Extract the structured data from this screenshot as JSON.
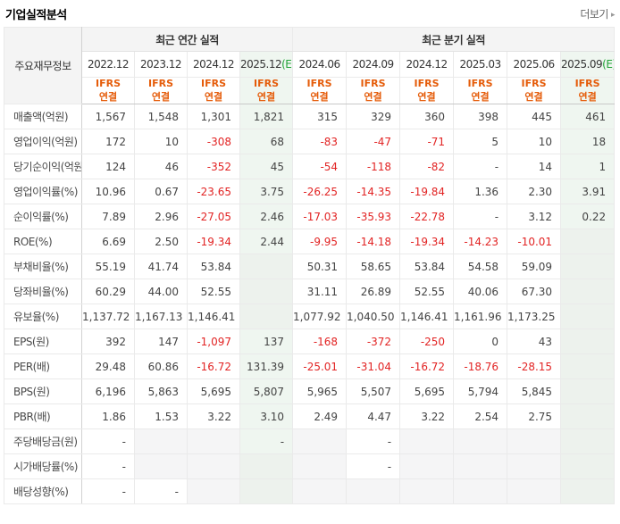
{
  "page": {
    "title": "기업실적분석",
    "more_label": "더보기",
    "more_arrow": "▸"
  },
  "colors": {
    "negative_red": "#e22424",
    "ifrs_orange": "#e55c0a",
    "estimate_green": "#23a338",
    "estimate_bg": "#eff6f0",
    "header_bg": "#f4f4f4",
    "empty_cell_bg": "#f5f5f6"
  },
  "table": {
    "corner_label": "주요재무정보",
    "groups": [
      {
        "label": "최근 연간 실적",
        "span": 4
      },
      {
        "label": "최근 분기 실적",
        "span": 6
      }
    ],
    "columns": [
      {
        "period": "2022.12",
        "suffix": "",
        "estimate": false
      },
      {
        "period": "2023.12",
        "suffix": "",
        "estimate": false
      },
      {
        "period": "2024.12",
        "suffix": "",
        "estimate": false
      },
      {
        "period": "2025.12",
        "suffix": "(E)",
        "estimate": true
      },
      {
        "period": "2024.06",
        "suffix": "",
        "estimate": false
      },
      {
        "period": "2024.09",
        "suffix": "",
        "estimate": false
      },
      {
        "period": "2024.12",
        "suffix": "",
        "estimate": false
      },
      {
        "period": "2025.03",
        "suffix": "",
        "estimate": false
      },
      {
        "period": "2025.06",
        "suffix": "",
        "estimate": false
      },
      {
        "period": "2025.09",
        "suffix": "(E)",
        "estimate": true
      }
    ],
    "ifrs": {
      "standard": "IFRS",
      "scope": "연결"
    },
    "rows": [
      {
        "label": "매출액(억원)",
        "group_start": false,
        "values": [
          "1,567",
          "1,548",
          "1,301",
          "1,821",
          "315",
          "329",
          "360",
          "398",
          "445",
          "461"
        ]
      },
      {
        "label": "영업이익(억원)",
        "group_start": false,
        "values": [
          "172",
          "10",
          "-308",
          "68",
          "-83",
          "-47",
          "-71",
          "5",
          "10",
          "18"
        ]
      },
      {
        "label": "당기순이익(억원)",
        "group_start": false,
        "values": [
          "124",
          "46",
          "-352",
          "45",
          "-54",
          "-118",
          "-82",
          "-",
          "14",
          "1"
        ]
      },
      {
        "label": "영업이익률(%)",
        "group_start": true,
        "values": [
          "10.96",
          "0.67",
          "-23.65",
          "3.75",
          "-26.25",
          "-14.35",
          "-19.84",
          "1.36",
          "2.30",
          "3.91"
        ]
      },
      {
        "label": "순이익률(%)",
        "group_start": false,
        "values": [
          "7.89",
          "2.96",
          "-27.05",
          "2.46",
          "-17.03",
          "-35.93",
          "-22.78",
          "-",
          "3.12",
          "0.22"
        ]
      },
      {
        "label": "ROE(%)",
        "group_start": false,
        "values": [
          "6.69",
          "2.50",
          "-19.34",
          "2.44",
          "-9.95",
          "-14.18",
          "-19.34",
          "-14.23",
          "-10.01",
          ""
        ]
      },
      {
        "label": "부채비율(%)",
        "group_start": true,
        "values": [
          "55.19",
          "41.74",
          "53.84",
          "",
          "50.31",
          "58.65",
          "53.84",
          "54.58",
          "59.09",
          ""
        ]
      },
      {
        "label": "당좌비율(%)",
        "group_start": false,
        "values": [
          "60.29",
          "44.00",
          "52.55",
          "",
          "31.11",
          "26.89",
          "52.55",
          "40.06",
          "67.30",
          ""
        ]
      },
      {
        "label": "유보율(%)",
        "group_start": false,
        "values": [
          "1,137.72",
          "1,167.13",
          "1,146.41",
          "",
          "1,077.92",
          "1,040.50",
          "1,146.41",
          "1,161.96",
          "1,173.25",
          ""
        ]
      },
      {
        "label": "EPS(원)",
        "group_start": true,
        "values": [
          "392",
          "147",
          "-1,097",
          "137",
          "-168",
          "-372",
          "-250",
          "0",
          "43",
          ""
        ]
      },
      {
        "label": "PER(배)",
        "group_start": false,
        "values": [
          "29.48",
          "60.86",
          "-16.72",
          "131.39",
          "-25.01",
          "-31.04",
          "-16.72",
          "-18.76",
          "-28.15",
          ""
        ]
      },
      {
        "label": "BPS(원)",
        "group_start": false,
        "values": [
          "6,196",
          "5,863",
          "5,695",
          "5,807",
          "5,965",
          "5,507",
          "5,695",
          "5,794",
          "5,845",
          ""
        ]
      },
      {
        "label": "PBR(배)",
        "group_start": false,
        "values": [
          "1.86",
          "1.53",
          "3.22",
          "3.10",
          "2.49",
          "4.47",
          "3.22",
          "2.54",
          "2.75",
          ""
        ]
      },
      {
        "label": "주당배당금(원)",
        "group_start": true,
        "values": [
          "-",
          "",
          "",
          "-",
          "",
          "-",
          "",
          "",
          "",
          ""
        ]
      },
      {
        "label": "시가배당률(%)",
        "group_start": false,
        "values": [
          "-",
          "",
          "",
          "",
          "",
          "-",
          "",
          "",
          "",
          ""
        ]
      },
      {
        "label": "배당성향(%)",
        "group_start": false,
        "values": [
          "-",
          "-",
          "",
          "",
          "",
          "",
          "",
          "",
          "",
          ""
        ]
      }
    ]
  }
}
